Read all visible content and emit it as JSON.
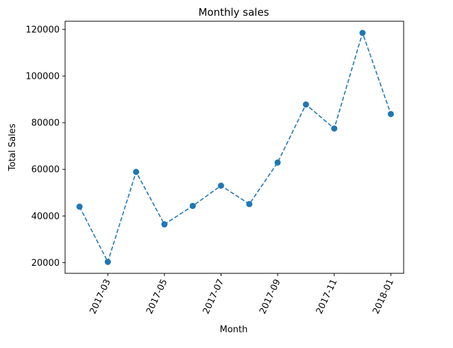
{
  "chart_data": {
    "type": "line",
    "title": "Monthly sales",
    "xlabel": "Month",
    "ylabel": "Total Sales",
    "x": [
      "2017-02",
      "2017-03",
      "2017-04",
      "2017-05",
      "2017-06",
      "2017-07",
      "2017-08",
      "2017-09",
      "2017-10",
      "2017-11",
      "2017-12",
      "2018-01"
    ],
    "series": [
      {
        "values": [
          44000,
          20300,
          58900,
          36400,
          44300,
          53000,
          45100,
          62900,
          87800,
          77500,
          118500,
          83700
        ]
      }
    ],
    "x_ticks": [
      "2017-03",
      "2017-05",
      "2017-07",
      "2017-09",
      "2017-11",
      "2018-01"
    ],
    "y_ticks": [
      "20000",
      "40000",
      "60000",
      "80000",
      "100000",
      "120000"
    ],
    "y_tick_values": [
      20000,
      40000,
      60000,
      80000,
      100000,
      120000
    ],
    "ylim": [
      15400,
      123500
    ],
    "line_style": "dashed",
    "marker": "circle",
    "grid": false,
    "legend": "none",
    "colors": {
      "series": "#1f77b4",
      "axis": "#000000",
      "background": "#ffffff"
    }
  }
}
